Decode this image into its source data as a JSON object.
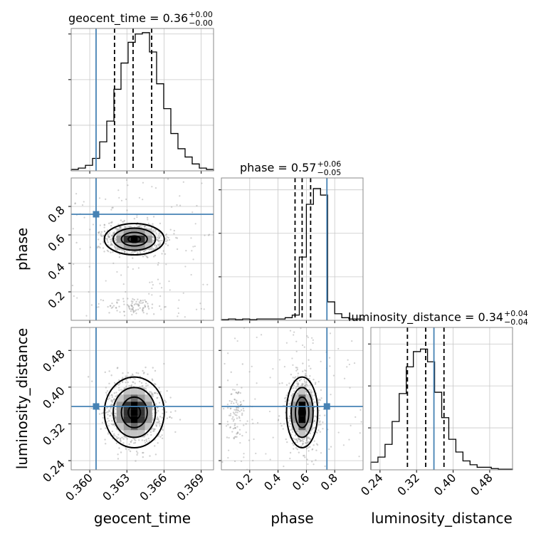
{
  "chart_data": {
    "type": "corner",
    "parameters": [
      "geocent_time",
      "phase",
      "luminosity_distance"
    ],
    "truths": {
      "geocent_time": 0.36051,
      "phase": 0.745,
      "luminosity_distance": 0.358
    },
    "titles": [
      {
        "parameter": "geocent_time",
        "prefix": "geocent_time = 0.36",
        "plus": "+0.00",
        "minus": "−0.00"
      },
      {
        "parameter": "phase",
        "prefix": "phase = 0.57",
        "plus": "+0.06",
        "minus": "−0.05"
      },
      {
        "parameter": "luminosity_distance",
        "prefix": "luminosity_distance = 0.34",
        "plus": "+0.04",
        "minus": "−0.04"
      }
    ],
    "axes": {
      "geocent_time": {
        "range": [
          0.3585,
          0.37
        ],
        "ticks": [
          0.36,
          0.363,
          0.366,
          0.369
        ],
        "tick_labels": [
          "0.360",
          "0.363",
          "0.366",
          "0.369"
        ],
        "label": "geocent_time"
      },
      "phase": {
        "range": [
          0.0,
          1.0
        ],
        "ticks": [
          0.2,
          0.4,
          0.6,
          0.8
        ],
        "tick_labels": [
          "0.2",
          "0.4",
          "0.6",
          "0.8"
        ],
        "label": "phase"
      },
      "luminosity_distance": {
        "range": [
          0.22,
          0.53
        ],
        "ticks": [
          0.24,
          0.32,
          0.4,
          0.48
        ],
        "tick_labels": [
          "0.24",
          "0.32",
          "0.40",
          "0.48"
        ],
        "label": "luminosity_distance"
      }
    },
    "histograms": {
      "geocent_time": {
        "values": [
          0.01,
          0.02,
          0.04,
          0.09,
          0.21,
          0.36,
          0.59,
          0.78,
          0.93,
          0.99,
          1.0,
          0.86,
          0.63,
          0.45,
          0.27,
          0.16,
          0.1,
          0.05,
          0.02,
          0.01
        ],
        "quantiles": [
          0.362,
          0.3635,
          0.365
        ]
      },
      "phase": {
        "values": [
          0.005,
          0.01,
          0.005,
          0.01,
          0.005,
          0.01,
          0.01,
          0.01,
          0.01,
          0.02,
          0.04,
          0.48,
          0.88,
          1.0,
          0.95,
          0.14,
          0.05,
          0.02,
          0.01,
          0.01
        ],
        "quantiles": [
          0.52,
          0.57,
          0.63
        ]
      },
      "luminosity_distance": {
        "values": [
          0.06,
          0.1,
          0.2,
          0.38,
          0.6,
          0.81,
          0.93,
          0.95,
          0.85,
          0.61,
          0.41,
          0.24,
          0.14,
          0.07,
          0.04,
          0.02,
          0.02,
          0.01,
          0.005,
          0.005
        ],
        "quantiles": [
          0.3,
          0.34,
          0.38
        ]
      }
    },
    "histogram_ymax": {
      "geocent_time": 1.0,
      "phase": 1.0,
      "luminosity_distance": 1.0
    },
    "ylim_scale": {
      "geocent_time": 1.03,
      "phase": 1.08,
      "luminosity_distance": 1.12
    },
    "grid": true,
    "posterior_summary": {
      "geocent_time": {
        "mean": 0.3636,
        "sd": 0.0011
      },
      "phase": {
        "mean": 0.57,
        "sd": 0.05,
        "secondary_mode": 0.1
      },
      "luminosity_distance": {
        "mean": 0.345,
        "sd": 0.035
      }
    }
  }
}
